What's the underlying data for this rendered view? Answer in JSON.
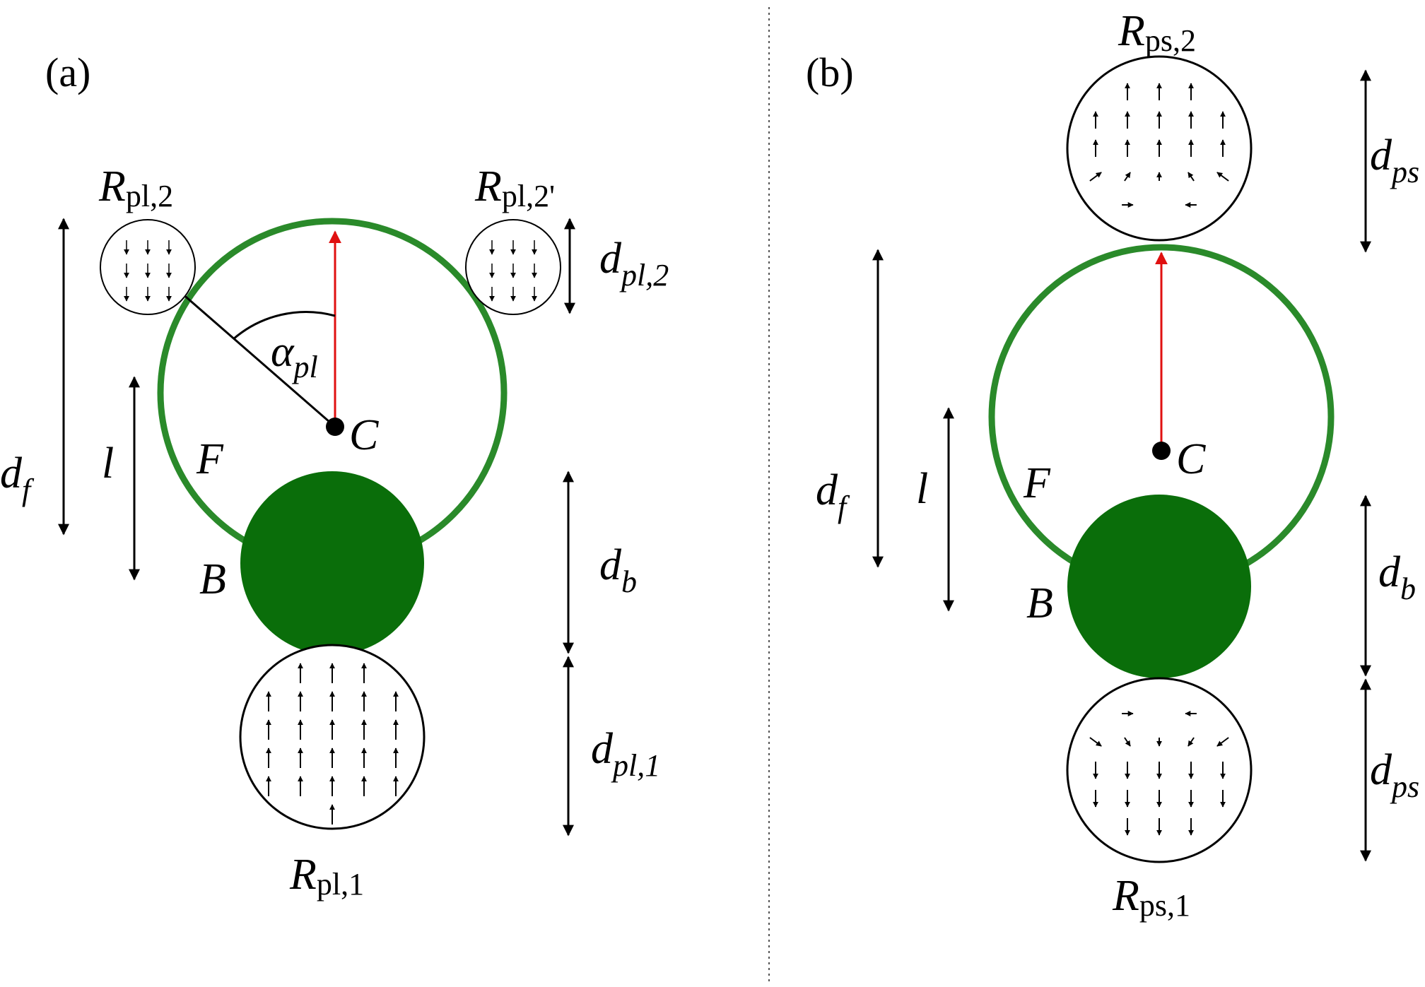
{
  "colors": {
    "green": "#0a6e0a",
    "ring": "#2a8a2a",
    "red": "#e01010",
    "black": "#000000",
    "divider": "#555555"
  },
  "panel_a": {
    "label": "(a)",
    "center_label": "C",
    "filament_label": "F",
    "body_label": "B",
    "angle_main": "α",
    "angle_sub": "pl",
    "df_main": "d",
    "df_sub": "f",
    "l_label": "l",
    "db_main": "d",
    "db_sub": "b",
    "dpl2_main": "d",
    "dpl2_sub": "pl,2",
    "dpl1_main": "d",
    "dpl1_sub": "pl,1",
    "r2_main": "R",
    "r2_sub": "pl,2",
    "r2p_main": "R",
    "r2p_sub": "pl,2'",
    "r1_main": "R",
    "r1_sub": "pl,1"
  },
  "panel_b": {
    "label": "(b)",
    "center_label": "C",
    "filament_label": "F",
    "body_label": "B",
    "df_main": "d",
    "df_sub": "f",
    "l_label": "l",
    "db_main": "d",
    "db_sub": "b",
    "dps_top_main": "d",
    "dps_top_sub": "ps",
    "dps_bot_main": "d",
    "dps_bot_sub": "ps",
    "r2_main": "R",
    "r2_sub": "ps,2",
    "r1_main": "R",
    "r1_sub": "ps,1"
  }
}
